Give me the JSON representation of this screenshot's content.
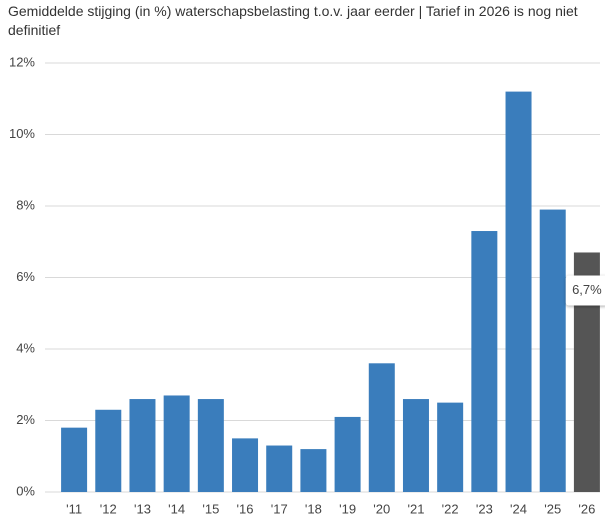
{
  "chart_data": {
    "type": "bar",
    "title": "Gemiddelde stijging (in %) waterschapsbelasting t.o.v. jaar eerder | Tarief in 2026 is nog niet definitief",
    "categories": [
      "'11",
      "'12",
      "'13",
      "'14",
      "'15",
      "'16",
      "'17",
      "'18",
      "'19",
      "'20",
      "'21",
      "'22",
      "'23",
      "'24",
      "'25",
      "'26"
    ],
    "values": [
      1.8,
      2.3,
      2.6,
      2.7,
      2.6,
      1.5,
      1.3,
      1.2,
      2.1,
      3.6,
      2.6,
      2.5,
      7.3,
      11.2,
      7.9,
      6.7
    ],
    "value_labels": [
      null,
      null,
      null,
      null,
      null,
      null,
      null,
      null,
      null,
      null,
      null,
      null,
      null,
      null,
      null,
      "6,7%"
    ],
    "colors": [
      "#3a7dbc",
      "#3a7dbc",
      "#3a7dbc",
      "#3a7dbc",
      "#3a7dbc",
      "#3a7dbc",
      "#3a7dbc",
      "#3a7dbc",
      "#3a7dbc",
      "#3a7dbc",
      "#3a7dbc",
      "#3a7dbc",
      "#3a7dbc",
      "#3a7dbc",
      "#3a7dbc",
      "#555555"
    ],
    "ylim": [
      0,
      12
    ],
    "yticks": [
      {
        "value": 0,
        "label": "0%"
      },
      {
        "value": 2,
        "label": "2%"
      },
      {
        "value": 4,
        "label": "4%"
      },
      {
        "value": 6,
        "label": "6%"
      },
      {
        "value": 8,
        "label": "8%"
      },
      {
        "value": 10,
        "label": "10%"
      },
      {
        "value": 12,
        "label": "12%"
      }
    ],
    "grid": true
  }
}
